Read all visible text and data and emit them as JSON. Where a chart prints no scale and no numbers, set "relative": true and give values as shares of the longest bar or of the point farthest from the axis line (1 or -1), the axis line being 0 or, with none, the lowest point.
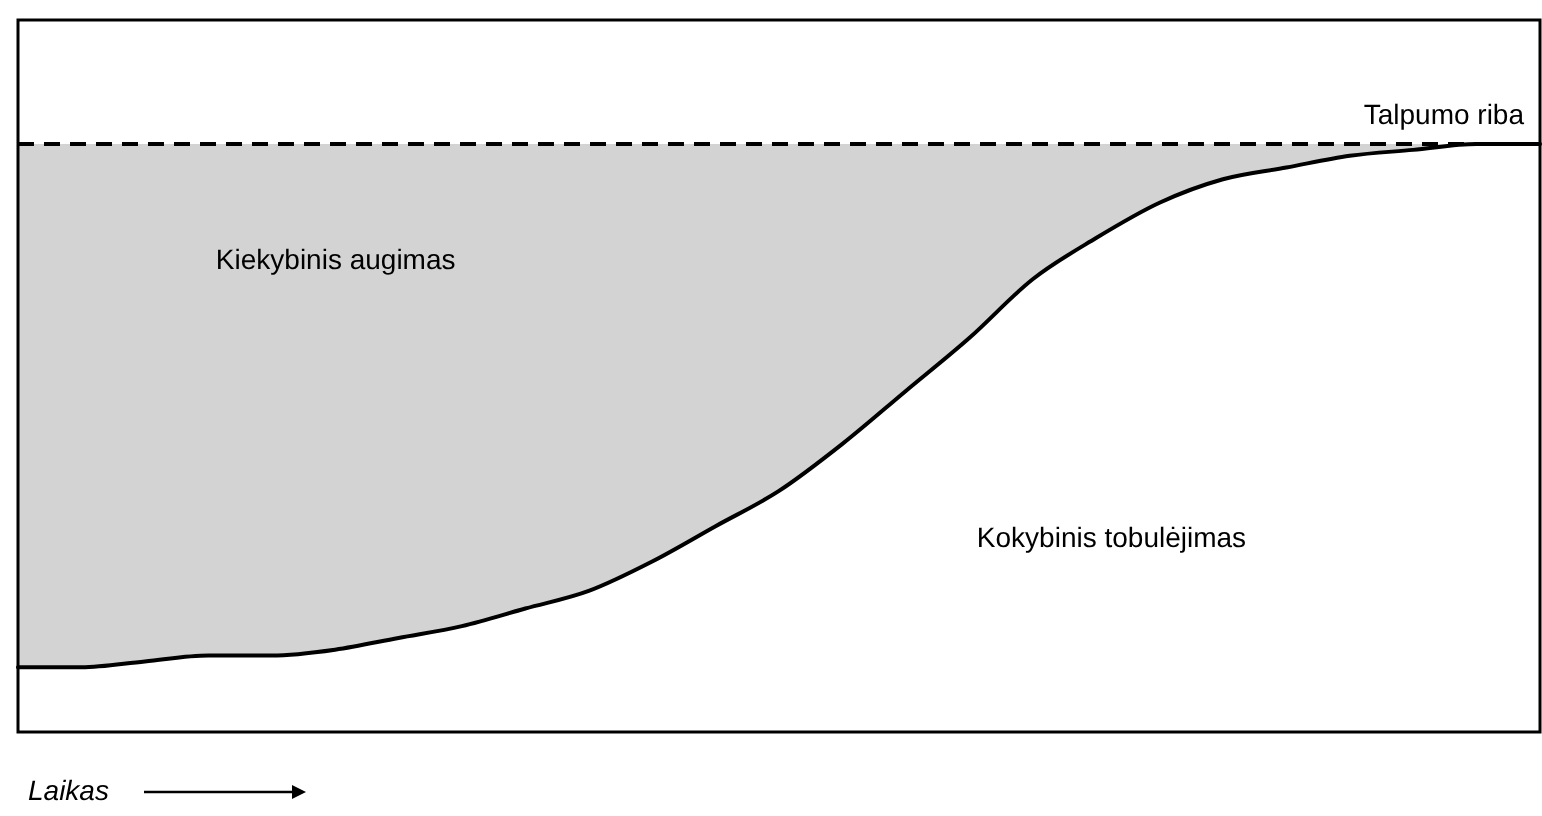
{
  "chart_data": {
    "type": "line",
    "relative": true,
    "xlabel": "Laikas",
    "categories": [
      null,
      null,
      null,
      null,
      null,
      null,
      null,
      null,
      null,
      null,
      null,
      null,
      null,
      null,
      null,
      null,
      null,
      null,
      null,
      null,
      null,
      null,
      null,
      null,
      null
    ],
    "series": [
      {
        "color": "#000000",
        "values": [
          0.11,
          0.11,
          0.12,
          0.13,
          0.13,
          0.14,
          0.16,
          0.18,
          0.21,
          0.24,
          0.29,
          0.35,
          0.41,
          0.49,
          0.58,
          0.67,
          0.77,
          0.84,
          0.9,
          0.94,
          0.96,
          0.98,
          0.99,
          1,
          1
        ],
        "lower": [
          0.11,
          0.11,
          0.12,
          0.13,
          0.13,
          0.14,
          0.16,
          0.18,
          0.21,
          0.24,
          0.29,
          0.35,
          0.41,
          0.49,
          0.58,
          0.67,
          0.77,
          0.84,
          0.9,
          0.94,
          0.96,
          0.98,
          0.99,
          1,
          1
        ],
        "upper": [
          1,
          1,
          1,
          1,
          1,
          1,
          1,
          1,
          1,
          1,
          1,
          1,
          1,
          1,
          1,
          1,
          1,
          1,
          1,
          1,
          1,
          1,
          1,
          1,
          1
        ]
      }
    ],
    "ref_lines": [
      {
        "axis": "y",
        "value": 1,
        "label": "Talpumo riba",
        "color": "#000000",
        "line_style": "dashed"
      }
    ],
    "annotations": [
      "Kiekybinis augimas",
      "Kokybinis tobulėjimas"
    ],
    "grid": false,
    "marker": "none",
    "line_style": "solid"
  }
}
